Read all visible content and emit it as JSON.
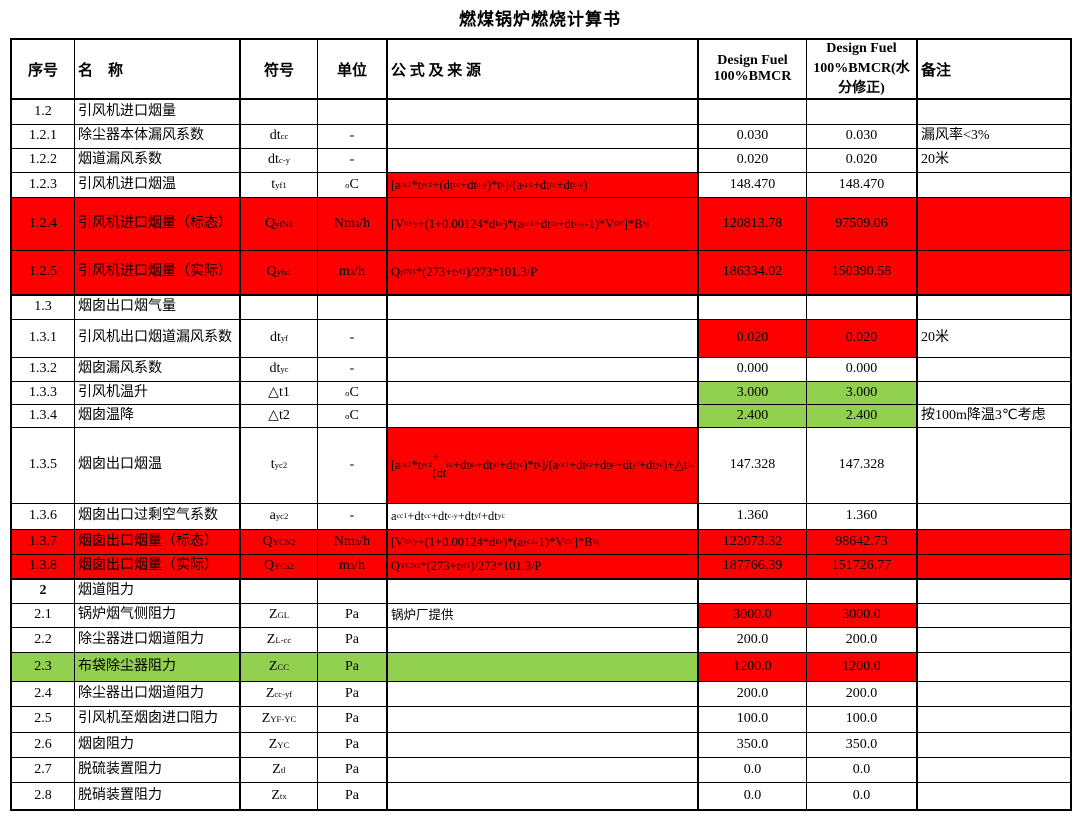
{
  "title": "燃煤锅炉燃烧计算书",
  "colors": {
    "highlight_red": "#ff0000",
    "highlight_green": "#92d050",
    "border": "#000000"
  },
  "table": {
    "headers": [
      "序号",
      "名　称",
      "符号",
      "单位",
      "公 式 及 来 源",
      "Design Fuel 100%BMCR",
      "Design Fuel 100%BMCR(水分修正)",
      "备注"
    ],
    "rows": [
      {
        "id": "1.2",
        "name": "引风机进口烟量",
        "symbol": "",
        "unit": "",
        "formula": "",
        "v1": "",
        "v2": "",
        "remark": ""
      },
      {
        "id": "1.2.1",
        "name": "除尘器本体漏风系数",
        "symbol": "dt_(cc)",
        "unit": "-",
        "formula": "",
        "v1": "0.030",
        "v2": "0.030",
        "remark": "漏风率<3%"
      },
      {
        "id": "1.2.2",
        "name": "烟道漏风系数",
        "symbol": "dt_(c-y)",
        "unit": "-",
        "formula": "",
        "v1": "0.020",
        "v2": "0.020",
        "remark": "20米"
      },
      {
        "id": "1.2.3",
        "name": "引风机进口烟温",
        "symbol": "t_(yf1)",
        "unit": "^(o)C",
        "formula": "[a_(cc1)*t_(yc1)+(dt_(cc)+dt_(c-y))*t_(k)]/(a_(cc1)+dt_(cc)+dt_(c-y))",
        "v1": "148.470",
        "v2": "148.470",
        "remark": "",
        "bg": {
          "formula": "red"
        }
      },
      {
        "id": "1.2.4",
        "name": "引风机进口烟量（标态）",
        "symbol": "Q_(yf)^(N)_(1)",
        "unit": "Nm^(3)/h",
        "formula": "[V^(0S')_(y)+(1+0.00124*d_(kv))*(a_(cc1)+dt_(cc)+dt_(c-y)-1)*V^(0S')]*B^(S)_(j)",
        "v1": "120813.78",
        "v2": "97509.06",
        "remark": "",
        "bg": {
          "row": "red"
        }
      },
      {
        "id": "1.2.5",
        "name": "引风机进口烟量（实际）",
        "symbol": "Q_(yf)^(s)_(1)",
        "unit": "m^(3)/h",
        "formula": "Q_(yf)^(N)_(1)*(273+t_(yf1))/273*101.3/P",
        "v1": "186334.02",
        "v2": "150390.58",
        "remark": "",
        "bg": {
          "row": "red"
        }
      },
      {
        "id": "1.3",
        "name": "烟囱出口烟气量",
        "symbol": "",
        "unit": "",
        "formula": "",
        "v1": "",
        "v2": "",
        "remark": "",
        "thickTop": true
      },
      {
        "id": "1.3.1",
        "name": "引风机出口烟道漏风系数",
        "symbol": "dt_(yf)",
        "unit": "-",
        "formula": "",
        "v1": "0.020",
        "v2": "0.020",
        "remark": "20米",
        "bg": {
          "v1": "red",
          "v2": "red"
        }
      },
      {
        "id": "1.3.2",
        "name": "烟囱漏风系数",
        "symbol": "dt_(yc)",
        "unit": "-",
        "formula": "",
        "v1": "0.000",
        "v2": "0.000",
        "remark": ""
      },
      {
        "id": "1.3.3",
        "name": "引风机温升",
        "symbol": "△t1",
        "unit": "^(o)C",
        "formula": "",
        "v1": "3.000",
        "v2": "3.000",
        "remark": "",
        "bg": {
          "v1": "green",
          "v2": "green"
        }
      },
      {
        "id": "1.3.4",
        "name": "烟囱温降",
        "symbol": "△t2",
        "unit": "^(o)C",
        "formula": "",
        "v1": "2.400",
        "v2": "2.400",
        "remark": "按100m降温3℃考虑",
        "bg": {
          "v1": "green",
          "v2": "green"
        }
      },
      {
        "id": "1.3.5",
        "name": "烟囱出口烟温",
        "symbol": "t_(yc2)",
        "unit": "-",
        "formula": "[a_(cc1)*t_(yc1)+(dt_(cc)+dt_(c-y)+dt_(yf)+dt_(yc))*t_(k)]/(a_(cc1)+dt_(cc)+dt_(c-y)+dt_(yf)+dt_(yc))+△t_(1)-△t_(2)",
        "v1": "147.328",
        "v2": "147.328",
        "remark": "",
        "bg": {
          "formula": "red"
        }
      },
      {
        "id": "1.3.6",
        "name": "烟囱出口过剩空气系数",
        "symbol": "a_(yc2)",
        "unit": "-",
        "formula": "a_(cc1)+dt_(cc)+dt_(c-y)+dt_(yf)+dt_(yc)",
        "v1": "1.360",
        "v2": "1.360",
        "remark": ""
      },
      {
        "id": "1.3.7",
        "name": "烟囱出口烟量（标态）",
        "symbol": "Q_(YC)^(N)_(2)",
        "unit": "Nm^(3)/h",
        "formula": "[V^(0S')_(y)+(1+0.00124*d_(kv))*(a_(yc2)-1)*V^(0S')]*B^(S)_(j)",
        "v1": "122073.32",
        "v2": "98642.73",
        "remark": "",
        "bg": {
          "row": "red"
        }
      },
      {
        "id": "1.3.8",
        "name": "烟囱出口烟量（实际）",
        "symbol": "Q_(YC)^(s)_(2)",
        "unit": "m^(3)/h",
        "formula": "Q_(YC)^(N)_(2)*(273+t_(yf1))/273*101.3/P",
        "v1": "187766.39",
        "v2": "151726.77",
        "remark": "",
        "bg": {
          "row": "red"
        }
      },
      {
        "id": "2",
        "name": "烟道阻力",
        "symbol": "",
        "unit": "",
        "formula": "",
        "v1": "",
        "v2": "",
        "remark": "",
        "thickTop": true,
        "boldId": true
      },
      {
        "id": "2.1",
        "name": "锅炉烟气侧阻力",
        "symbol": "Z_(GL)",
        "unit": "Pa",
        "formula": "锅炉厂提供",
        "v1": "3000.0",
        "v2": "3000.0",
        "remark": "",
        "bg": {
          "v1": "red",
          "v2": "red"
        }
      },
      {
        "id": "2.2",
        "name": "除尘器进口烟道阻力",
        "symbol": "Z_(L-cc)",
        "unit": "Pa",
        "formula": "",
        "v1": "200.0",
        "v2": "200.0",
        "remark": ""
      },
      {
        "id": "2.3",
        "name": "布袋除尘器阻力",
        "symbol": "Z_(CC)",
        "unit": "Pa",
        "formula": "",
        "v1": "1200.0",
        "v2": "1200.0",
        "remark": "",
        "bg": {
          "head": "green",
          "v1": "red",
          "v2": "red"
        }
      },
      {
        "id": "2.4",
        "name": "除尘器出口烟道阻力",
        "symbol": "Z_(cc-yf)",
        "unit": "Pa",
        "formula": "",
        "v1": "200.0",
        "v2": "200.0",
        "remark": ""
      },
      {
        "id": "2.5",
        "name": "引风机至烟囱进口阻力",
        "symbol": "Z_(YF-YC)",
        "unit": "Pa",
        "formula": "",
        "v1": "100.0",
        "v2": "100.0",
        "remark": ""
      },
      {
        "id": "2.6",
        "name": "烟囱阻力",
        "symbol": "Z_(YC)",
        "unit": "Pa",
        "formula": "",
        "v1": "350.0",
        "v2": "350.0",
        "remark": ""
      },
      {
        "id": "2.7",
        "name": "脱硫装置阻力",
        "symbol": "Z_(tl)",
        "unit": "Pa",
        "formula": "",
        "v1": "0.0",
        "v2": "0.0",
        "remark": ""
      },
      {
        "id": "2.8",
        "name": "脱硝装置阻力",
        "symbol": "Z_(tx)",
        "unit": "Pa",
        "formula": "",
        "v1": "0.0",
        "v2": "0.0",
        "remark": ""
      }
    ]
  }
}
